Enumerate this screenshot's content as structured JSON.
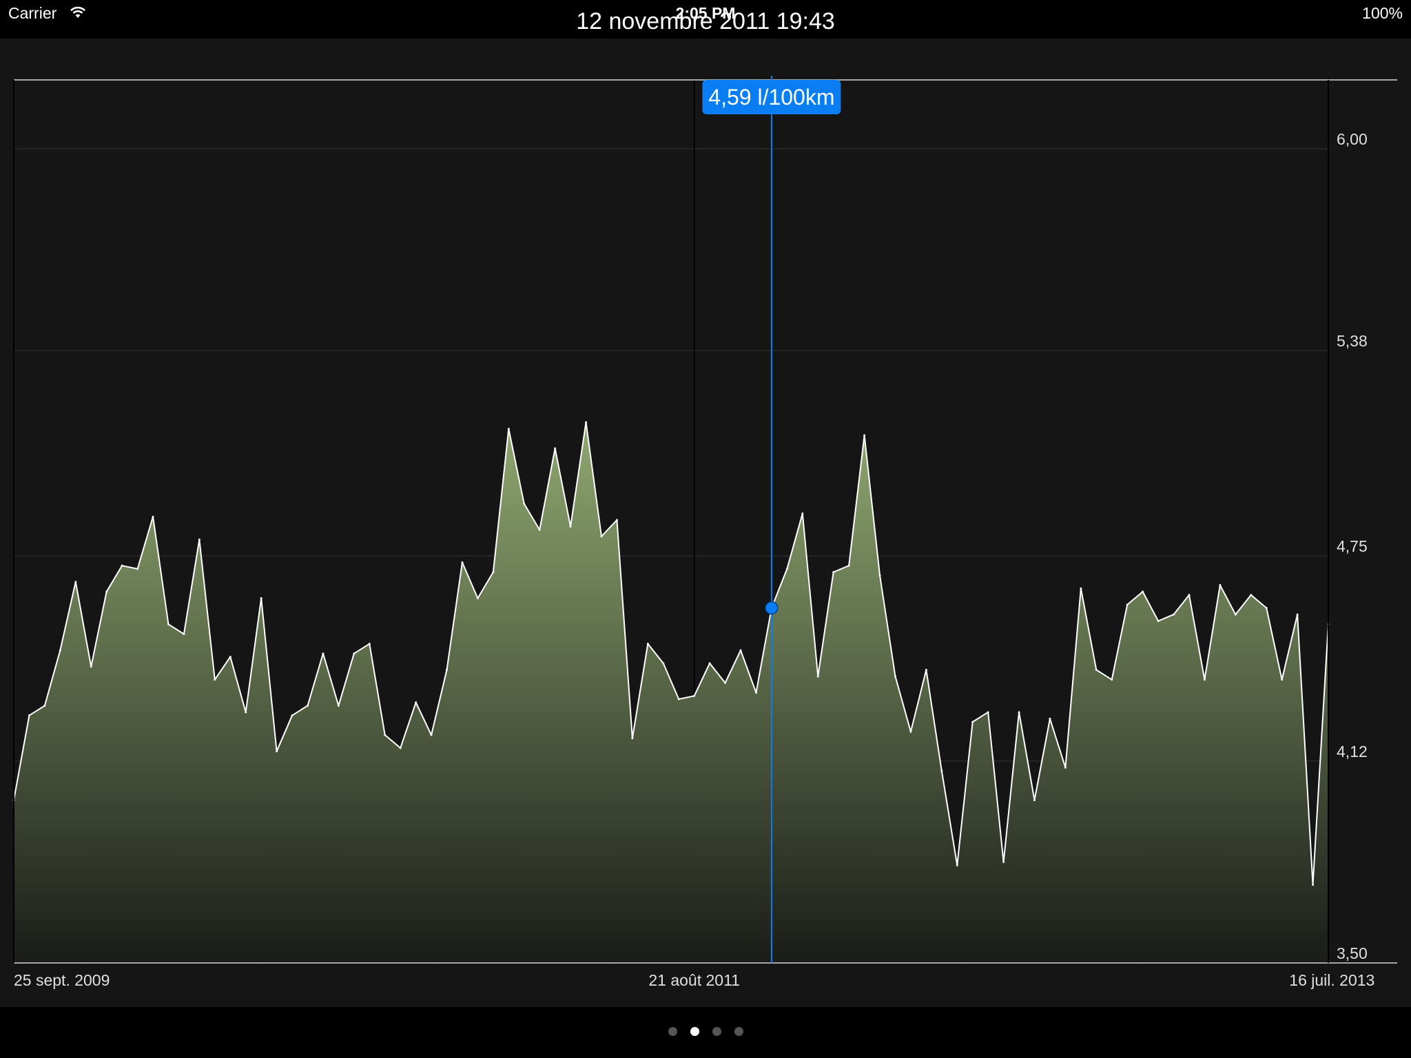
{
  "status_bar": {
    "carrier": "Carrier",
    "time": "2:05 PM",
    "battery": "100%"
  },
  "header": {
    "selected_date": "12 novembre 2011 19:43"
  },
  "selection": {
    "value_label": "4,59 l/100km",
    "index": 49
  },
  "pager": {
    "count": 4,
    "active": 1
  },
  "colors": {
    "accent": "#0a7df2",
    "fill_top": "#8fa870",
    "fill_bottom": "#1a1c18",
    "line": "#ffffff",
    "background": "#151515"
  },
  "chart_data": {
    "type": "area",
    "title": "",
    "xlabel": "",
    "ylabel": "",
    "ylim": [
      3.5,
      6.2
    ],
    "yticks": [
      "3,50",
      "4,12",
      "4,75",
      "5,38",
      "6,00"
    ],
    "ytick_values": [
      3.5,
      4.12,
      4.75,
      5.38,
      6.0
    ],
    "xticks": [
      {
        "label": "25 sept. 2009",
        "index": 0
      },
      {
        "label": "21 août 2011",
        "index": 44
      },
      {
        "label": "16 juil. 2013",
        "index": 88
      }
    ],
    "grid": true,
    "series": [
      {
        "values": [
          4.0,
          4.26,
          4.29,
          4.46,
          4.67,
          4.41,
          4.64,
          4.72,
          4.71,
          4.87,
          4.54,
          4.51,
          4.8,
          4.37,
          4.44,
          4.27,
          4.62,
          4.15,
          4.26,
          4.29,
          4.45,
          4.29,
          4.45,
          4.48,
          4.2,
          4.16,
          4.3,
          4.2,
          4.4,
          4.73,
          4.62,
          4.7,
          5.14,
          4.91,
          4.83,
          5.08,
          4.84,
          5.16,
          4.81,
          4.86,
          4.19,
          4.48,
          4.42,
          4.31,
          4.32,
          4.42,
          4.36,
          4.46,
          4.33,
          4.59,
          4.71,
          4.88,
          4.38,
          4.7,
          4.72,
          5.12,
          4.69,
          4.38,
          4.21,
          4.4,
          4.09,
          3.8,
          4.24,
          4.27,
          3.81,
          4.27,
          4.0,
          4.25,
          4.1,
          4.65,
          4.4,
          4.37,
          4.6,
          4.64,
          4.55,
          4.57,
          4.63,
          4.37,
          4.66,
          4.57,
          4.63,
          4.59,
          4.37,
          4.57,
          3.74,
          4.54
        ]
      }
    ]
  }
}
